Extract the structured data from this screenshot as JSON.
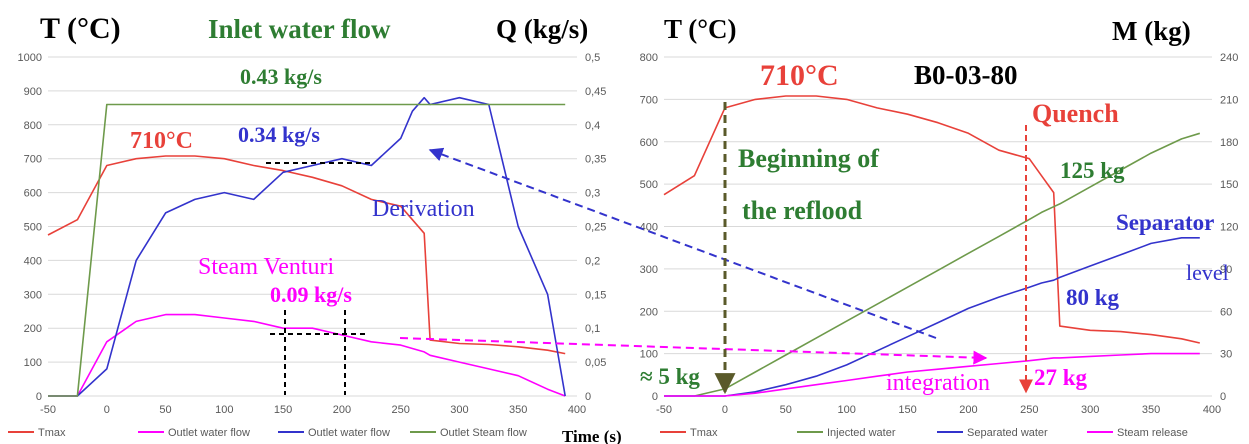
{
  "header": {
    "title": "Inlet water flow",
    "left_axis_title": "T (°C)",
    "right_axis_title": "Q (kg/s)",
    "mid_axis_title": "T (°C)",
    "far_right_axis_title": "M (kg)",
    "test_id": "B0-03-80",
    "xlabel": "Time (s)"
  },
  "colors": {
    "red": "#E8413A",
    "magenta": "#FF00FF",
    "blue": "#3333CC",
    "green": "#6E9A4B",
    "dark_green": "#2E7D32",
    "dark_olive": "#5A5A2A"
  },
  "chart_data": [
    {
      "type": "line",
      "xlim": [
        -50,
        400
      ],
      "ylim_left": [
        0,
        1000
      ],
      "ylim_right": [
        0,
        0.5
      ],
      "x_ticks": [
        -50,
        0,
        50,
        100,
        150,
        200,
        250,
        300,
        350,
        400
      ],
      "y_left_ticks": [
        0,
        100,
        200,
        300,
        400,
        500,
        600,
        700,
        800,
        900,
        1000
      ],
      "y_right_ticks": [
        "0",
        "0,05",
        "0,1",
        "0,15",
        "0,2",
        "0,25",
        "0,3",
        "0,35",
        "0,4",
        "0,45",
        "0,5"
      ],
      "grid": true,
      "legend_position": "bottom",
      "x": [
        -50,
        -25,
        0,
        25,
        50,
        75,
        100,
        125,
        150,
        175,
        200,
        225,
        250,
        260,
        270,
        275,
        300,
        325,
        350,
        375,
        390
      ],
      "series": [
        {
          "name": "Tmax",
          "axis": "left",
          "values": [
            475,
            520,
            680,
            700,
            708,
            708,
            700,
            680,
            665,
            645,
            620,
            580,
            560,
            520,
            480,
            165,
            155,
            152,
            145,
            135,
            125
          ]
        },
        {
          "name": "Outlet water flow",
          "axis": "right",
          "values": [
            0,
            0,
            0.08,
            0.11,
            0.12,
            0.12,
            0.115,
            0.11,
            0.1,
            0.1,
            0.09,
            0.08,
            0.075,
            0.07,
            0.065,
            0.06,
            0.05,
            0.04,
            0.03,
            0.01,
            0
          ]
        },
        {
          "name": "Outlet water flow",
          "axis": "right",
          "values": [
            0,
            0,
            0.04,
            0.2,
            0.27,
            0.29,
            0.3,
            0.29,
            0.33,
            0.34,
            0.35,
            0.34,
            0.38,
            0.42,
            0.44,
            0.43,
            0.44,
            0.43,
            0.25,
            0.15,
            0
          ]
        },
        {
          "name": "Outlet Steam flow",
          "axis": "right",
          "values": [
            0,
            0,
            0.43,
            0.43,
            0.43,
            0.43,
            0.43,
            0.43,
            0.43,
            0.43,
            0.43,
            0.43,
            0.43,
            0.43,
            0.43,
            0.43,
            0.43,
            0.43,
            0.43,
            0.43,
            0.43
          ]
        }
      ],
      "annotations": {
        "steam": "0.43 kg/s",
        "tmax": "710°C",
        "outlet": "0.34 kg/s",
        "derivation": "Derivation",
        "steam_venturi": "Steam Venturi",
        "venturi_value": "0.09 kg/s"
      }
    },
    {
      "type": "line",
      "xlim": [
        -50,
        400
      ],
      "ylim_left": [
        0,
        800
      ],
      "ylim_right": [
        0,
        240
      ],
      "x_ticks": [
        -50,
        0,
        50,
        100,
        150,
        200,
        250,
        300,
        350,
        400
      ],
      "y_left_ticks": [
        0,
        100,
        200,
        300,
        400,
        500,
        600,
        700,
        800
      ],
      "y_right_ticks": [
        0,
        30,
        60,
        90,
        120,
        150,
        180,
        210,
        240
      ],
      "grid": true,
      "legend_position": "bottom",
      "x": [
        -50,
        -25,
        0,
        25,
        50,
        75,
        100,
        125,
        150,
        175,
        200,
        225,
        250,
        260,
        270,
        275,
        300,
        325,
        350,
        375,
        390
      ],
      "series": [
        {
          "name": "Tmax",
          "axis": "left",
          "values": [
            475,
            520,
            680,
            700,
            708,
            708,
            700,
            680,
            665,
            645,
            620,
            580,
            560,
            520,
            480,
            165,
            155,
            152,
            145,
            135,
            125
          ]
        },
        {
          "name": "Injected water",
          "axis": "right",
          "values": [
            0,
            0,
            5,
            17,
            29,
            41,
            53,
            65,
            77,
            89,
            101,
            113,
            125,
            130,
            134,
            136,
            148,
            160,
            172,
            182,
            186
          ]
        },
        {
          "name": "Separated water",
          "axis": "right",
          "values": [
            0,
            0,
            0,
            3,
            8,
            14,
            22,
            32,
            42,
            52,
            62,
            70,
            77,
            80,
            82,
            84,
            92,
            100,
            108,
            112,
            112
          ]
        },
        {
          "name": "Steam release",
          "axis": "right",
          "values": [
            0,
            0,
            0,
            2,
            5,
            8,
            11,
            14,
            17,
            19,
            21,
            23,
            25,
            26,
            27,
            27,
            28,
            29,
            30,
            30,
            30
          ]
        }
      ],
      "annotations": {
        "tmax": "710°C",
        "beginning_1": "Beginning of",
        "beginning_2": "the reflood",
        "quench": "Quench",
        "injected_mass": "125 kg",
        "separator_1": "Separator",
        "separator_2": "level",
        "separated_mass": "80 kg",
        "initial_mass": "≈ 5 kg",
        "integration": "integration",
        "steam_mass": "27 kg"
      }
    }
  ]
}
